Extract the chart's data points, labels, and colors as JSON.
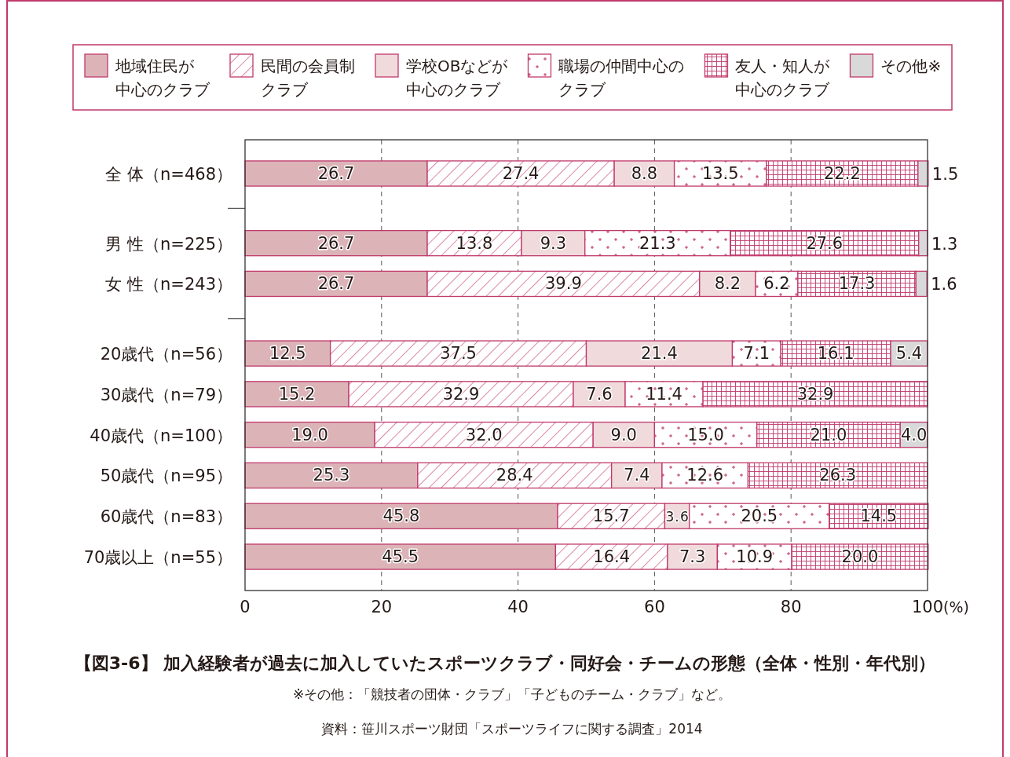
{
  "chart_data": {
    "type": "bar",
    "orientation": "horizontal",
    "stacked": true,
    "title": "【図3-6】 加入経験者が過去に加入していたスポーツクラブ・同好会・チームの形態（全体・性別・年代別）",
    "xlabel": "(%)",
    "categories": [
      "全 体（n=468）",
      null,
      "男 性（n=225）",
      "女 性（n=243）",
      null,
      "20歳代（n=56）",
      "30歳代（n=79）",
      "40歳代（n=100）",
      "50歳代（n=95）",
      "60歳代（n=83）",
      "70歳以上（n=55）"
    ],
    "series": [
      {
        "name": "地域住民が中心のクラブ",
        "color": "#dcb4b8",
        "values": [
          26.7,
          null,
          26.7,
          26.7,
          null,
          12.5,
          15.2,
          19.0,
          25.3,
          45.8,
          45.5
        ],
        "value_labels": [
          "26.7",
          null,
          "26.7",
          "26.7",
          null,
          "12.5",
          "15.2",
          "19.0",
          "25.3",
          "45.8",
          "45.5"
        ]
      },
      {
        "name": "民間の会員制クラブ",
        "color": "#c0396b",
        "values": [
          27.4,
          null,
          13.8,
          39.9,
          null,
          37.5,
          32.9,
          32.0,
          28.4,
          15.7,
          16.4
        ],
        "value_labels": [
          "27.4",
          null,
          "13.8",
          "39.9",
          null,
          "37.5",
          "32.9",
          "32.0",
          "28.4",
          "15.7",
          "16.4"
        ]
      },
      {
        "name": "学校OBなどが中心のクラブ",
        "color": "#f0dadc",
        "values": [
          8.8,
          null,
          9.3,
          8.2,
          null,
          21.4,
          7.6,
          9.0,
          7.4,
          3.6,
          7.3
        ],
        "value_labels": [
          "8.8",
          null,
          "9.3",
          "8.2",
          null,
          "21.4",
          "7.6",
          "9.0",
          "7.4",
          "3.6",
          "7.3"
        ]
      },
      {
        "name": "職場の仲間中心のクラブ",
        "color": "#c0396b",
        "values": [
          13.5,
          null,
          21.3,
          6.2,
          null,
          7.1,
          11.4,
          15.0,
          12.6,
          20.5,
          10.9
        ],
        "value_labels": [
          "13.5",
          null,
          "21.3",
          "6.2",
          null,
          "7.1",
          "11.4",
          "15.0",
          "12.6",
          "20.5",
          "10.9"
        ]
      },
      {
        "name": "友人・知人が中心のクラブ",
        "color": "#c0396b",
        "values": [
          22.2,
          null,
          27.6,
          17.3,
          null,
          16.1,
          32.9,
          21.0,
          26.3,
          14.5,
          20.0
        ],
        "value_labels": [
          "22.2",
          null,
          "27.6",
          "17.3",
          null,
          "16.1",
          "32.9",
          "21.0",
          "26.3",
          "14.5",
          "20.0"
        ]
      },
      {
        "name": "その他※",
        "color": "#d9d9d9",
        "values": [
          1.5,
          null,
          1.3,
          1.6,
          null,
          5.4,
          null,
          4.0,
          null,
          null,
          null
        ],
        "value_labels": [
          "1.5",
          null,
          "1.3",
          "1.6",
          null,
          "5.4",
          null,
          "4.0",
          null,
          null,
          null
        ]
      }
    ],
    "xlim": [
      0,
      100
    ],
    "xticks": [
      0,
      20,
      40,
      60,
      80,
      100
    ],
    "grid": "x",
    "legend": "top",
    "annotations": [
      "※その他：「競技者の団体・クラブ」「子どものチーム・クラブ」など。",
      "資料：笹川スポーツ財団「スポーツライフに関する調査」2014"
    ]
  }
}
